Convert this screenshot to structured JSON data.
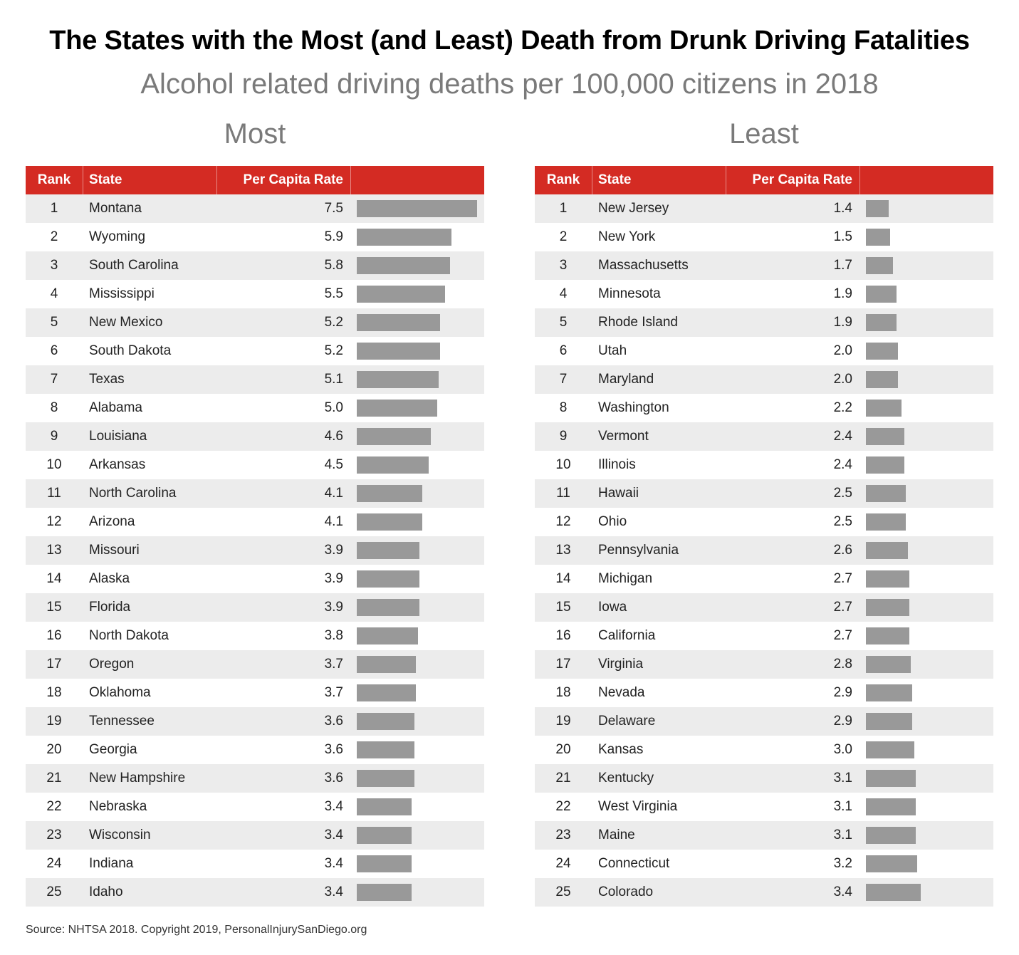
{
  "title": "The States with the Most (and Least) Death from Drunk Driving Fatalities",
  "subtitle": "Alcohol related driving deaths per 100,000 citizens in 2018",
  "columns": {
    "rank": "Rank",
    "state": "State",
    "rate": "Per Capita Rate"
  },
  "source": "Source: NHTSA 2018. Copyright 2019, PersonalInjurySanDiego.org",
  "colors": {
    "header": "#d42b23",
    "bar": "#999999",
    "row_alt": "#ececec"
  },
  "chart_data": [
    {
      "type": "table",
      "title": "Most",
      "rows": [
        {
          "rank": "1",
          "state": "Montana",
          "rate": "7.5",
          "value": 7.5
        },
        {
          "rank": "2",
          "state": "Wyoming",
          "rate": "5.9",
          "value": 5.9
        },
        {
          "rank": "3",
          "state": "South Carolina",
          "rate": "5.8",
          "value": 5.8
        },
        {
          "rank": "4",
          "state": "Mississippi",
          "rate": "5.5",
          "value": 5.5
        },
        {
          "rank": "5",
          "state": "New Mexico",
          "rate": "5.2",
          "value": 5.2
        },
        {
          "rank": "6",
          "state": "South Dakota",
          "rate": "5.2",
          "value": 5.2
        },
        {
          "rank": "7",
          "state": "Texas",
          "rate": "5.1",
          "value": 5.1
        },
        {
          "rank": "8",
          "state": "Alabama",
          "rate": "5.0",
          "value": 5.0
        },
        {
          "rank": "9",
          "state": "Louisiana",
          "rate": "4.6",
          "value": 4.6
        },
        {
          "rank": "10",
          "state": "Arkansas",
          "rate": "4.5",
          "value": 4.5
        },
        {
          "rank": "11",
          "state": "North Carolina",
          "rate": "4.1",
          "value": 4.1
        },
        {
          "rank": "12",
          "state": "Arizona",
          "rate": "4.1",
          "value": 4.1
        },
        {
          "rank": "13",
          "state": "Missouri",
          "rate": "3.9",
          "value": 3.9
        },
        {
          "rank": "14",
          "state": "Alaska",
          "rate": "3.9",
          "value": 3.9
        },
        {
          "rank": "15",
          "state": "Florida",
          "rate": "3.9",
          "value": 3.9
        },
        {
          "rank": "16",
          "state": "North Dakota",
          "rate": "3.8",
          "value": 3.8
        },
        {
          "rank": "17",
          "state": "Oregon",
          "rate": "3.7",
          "value": 3.7
        },
        {
          "rank": "18",
          "state": "Oklahoma",
          "rate": "3.7",
          "value": 3.7
        },
        {
          "rank": "19",
          "state": "Tennessee",
          "rate": "3.6",
          "value": 3.6
        },
        {
          "rank": "20",
          "state": "Georgia",
          "rate": "3.6",
          "value": 3.6
        },
        {
          "rank": "21",
          "state": "New Hampshire",
          "rate": "3.6",
          "value": 3.6
        },
        {
          "rank": "22",
          "state": "Nebraska",
          "rate": "3.4",
          "value": 3.4
        },
        {
          "rank": "23",
          "state": "Wisconsin",
          "rate": "3.4",
          "value": 3.4
        },
        {
          "rank": "24",
          "state": "Indiana",
          "rate": "3.4",
          "value": 3.4
        },
        {
          "rank": "25",
          "state": "Idaho",
          "rate": "3.4",
          "value": 3.4
        }
      ]
    },
    {
      "type": "table",
      "title": "Least",
      "rows": [
        {
          "rank": "1",
          "state": "New Jersey",
          "rate": "1.4",
          "value": 1.4
        },
        {
          "rank": "2",
          "state": "New York",
          "rate": "1.5",
          "value": 1.5
        },
        {
          "rank": "3",
          "state": "Massachusetts",
          "rate": "1.7",
          "value": 1.7
        },
        {
          "rank": "4",
          "state": "Minnesota",
          "rate": "1.9",
          "value": 1.9
        },
        {
          "rank": "5",
          "state": "Rhode Island",
          "rate": "1.9",
          "value": 1.9
        },
        {
          "rank": "6",
          "state": "Utah",
          "rate": "2.0",
          "value": 2.0
        },
        {
          "rank": "7",
          "state": "Maryland",
          "rate": "2.0",
          "value": 2.0
        },
        {
          "rank": "8",
          "state": "Washington",
          "rate": "2.2",
          "value": 2.2
        },
        {
          "rank": "9",
          "state": "Vermont",
          "rate": "2.4",
          "value": 2.4
        },
        {
          "rank": "10",
          "state": "Illinois",
          "rate": "2.4",
          "value": 2.4
        },
        {
          "rank": "11",
          "state": "Hawaii",
          "rate": "2.5",
          "value": 2.5
        },
        {
          "rank": "12",
          "state": "Ohio",
          "rate": "2.5",
          "value": 2.5
        },
        {
          "rank": "13",
          "state": "Pennsylvania",
          "rate": "2.6",
          "value": 2.6
        },
        {
          "rank": "14",
          "state": "Michigan",
          "rate": "2.7",
          "value": 2.7
        },
        {
          "rank": "15",
          "state": "Iowa",
          "rate": "2.7",
          "value": 2.7
        },
        {
          "rank": "16",
          "state": "California",
          "rate": "2.7",
          "value": 2.7
        },
        {
          "rank": "17",
          "state": "Virginia",
          "rate": "2.8",
          "value": 2.8
        },
        {
          "rank": "18",
          "state": "Nevada",
          "rate": "2.9",
          "value": 2.9
        },
        {
          "rank": "19",
          "state": "Delaware",
          "rate": "2.9",
          "value": 2.9
        },
        {
          "rank": "20",
          "state": "Kansas",
          "rate": "3.0",
          "value": 3.0
        },
        {
          "rank": "21",
          "state": "Kentucky",
          "rate": "3.1",
          "value": 3.1
        },
        {
          "rank": "22",
          "state": "West Virginia",
          "rate": "3.1",
          "value": 3.1
        },
        {
          "rank": "23",
          "state": "Maine",
          "rate": "3.1",
          "value": 3.1
        },
        {
          "rank": "24",
          "state": "Connecticut",
          "rate": "3.2",
          "value": 3.2
        },
        {
          "rank": "25",
          "state": "Colorado",
          "rate": "3.4",
          "value": 3.4
        }
      ]
    }
  ]
}
